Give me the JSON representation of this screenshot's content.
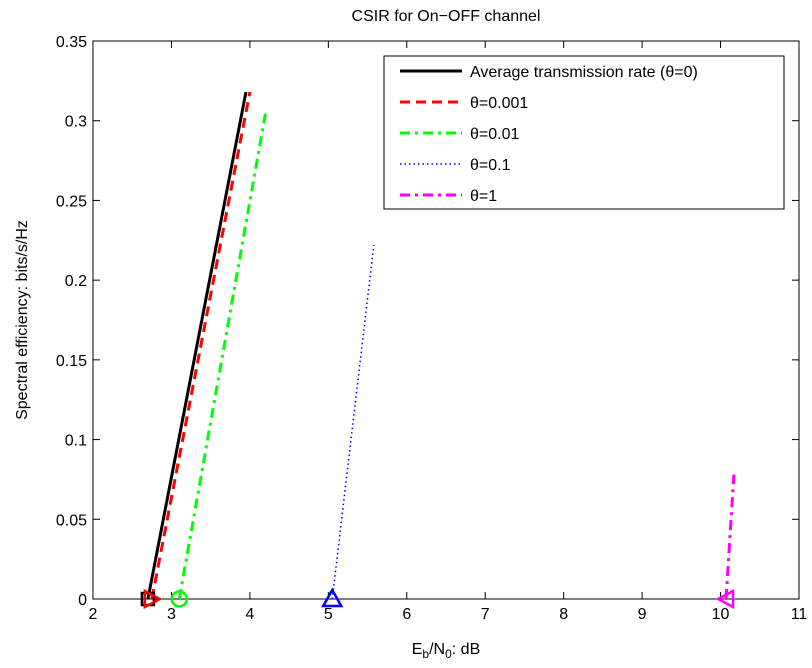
{
  "chart_data": {
    "type": "line",
    "title": "CSIR for On−OFF channel",
    "xlabel": {
      "main": "E",
      "sub1": "b",
      "mid": "/N",
      "sub2": "0",
      "tail": ": dB"
    },
    "ylabel": "Spectral efficiency: bits/s/Hz",
    "xlim": [
      2,
      11
    ],
    "ylim": [
      0,
      0.35
    ],
    "x_ticks": [
      2,
      3,
      4,
      5,
      6,
      7,
      8,
      9,
      10,
      11
    ],
    "x_tick_labels": [
      "2",
      "3",
      "4",
      "5",
      "6",
      "7",
      "8",
      "9",
      "10",
      "11"
    ],
    "y_ticks": [
      0,
      0.05,
      0.1,
      0.15,
      0.2,
      0.25,
      0.3,
      0.35
    ],
    "y_tick_labels": [
      "0",
      "0.05",
      "0.1",
      "0.15",
      "0.2",
      "0.25",
      "0.3",
      "0.35"
    ],
    "grid": false,
    "legend_position": "top-right",
    "series": [
      {
        "name": "Average transmission rate (θ=0)",
        "color": "#000000",
        "dash": "solid",
        "marker": "square",
        "x": [
          2.7,
          3.95
        ],
        "y": [
          0,
          0.318
        ]
      },
      {
        "name": "θ=0.001",
        "color": "#ff0000",
        "dash": "dashed",
        "marker": "triangle-right",
        "x": [
          2.75,
          4.0
        ],
        "y": [
          0,
          0.318
        ]
      },
      {
        "name": "θ=0.01",
        "color": "#00ff00",
        "dash": "dashdot",
        "marker": "circle",
        "x": [
          3.1,
          4.2
        ],
        "y": [
          0,
          0.305
        ]
      },
      {
        "name": "θ=0.1",
        "color": "#0000ff",
        "dash": "dotted",
        "marker": "triangle-up",
        "x": [
          5.05,
          5.58
        ],
        "y": [
          0,
          0.222
        ]
      },
      {
        "name": "θ=1",
        "color": "#ff00ff",
        "dash": "dashdot",
        "marker": "triangle-left",
        "x": [
          10.07,
          10.17
        ],
        "y": [
          0,
          0.078
        ]
      }
    ]
  }
}
